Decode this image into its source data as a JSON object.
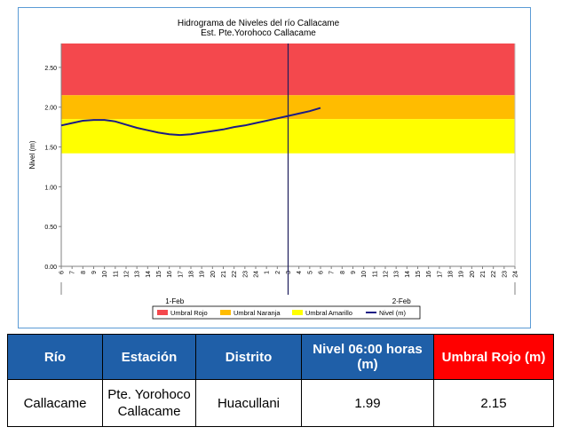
{
  "chart_data": {
    "type": "line",
    "title": "Hidrograma de Niveles del río Callacame",
    "subtitle": "Est. Pte.Yorohoco Callacame",
    "ylabel": "Nivel (m)",
    "xlabel": "",
    "ylim": [
      0,
      2.8
    ],
    "yticks": [
      "0.00",
      "0.50",
      "1.00",
      "1.50",
      "2.00",
      "2.50"
    ],
    "hours_per_day": [
      "6",
      "7",
      "8",
      "9",
      "10",
      "11",
      "12",
      "13",
      "14",
      "15",
      "16",
      "17",
      "18",
      "19",
      "20",
      "21",
      "22",
      "23",
      "24",
      "1",
      "2",
      "3",
      "4",
      "5",
      "6",
      "7",
      "8",
      "9",
      "10",
      "11",
      "12",
      "13",
      "14",
      "15",
      "16",
      "17",
      "18",
      "19",
      "20",
      "21",
      "22",
      "23",
      "24"
    ],
    "day_labels": [
      "1-Feb",
      "2-Feb"
    ],
    "grid": false,
    "legend_placement": "bottom",
    "bands": [
      {
        "name": "Umbral Rojo",
        "from": 2.15,
        "to": 2.8,
        "color": "#f4484d"
      },
      {
        "name": "Umbral Naranja",
        "from": 1.85,
        "to": 2.15,
        "color": "#ffbc00"
      },
      {
        "name": "Umbral Amarillo",
        "from": 1.42,
        "to": 1.85,
        "color": "#ffff00"
      }
    ],
    "series": [
      {
        "name": "Nivel (m)",
        "color": "#1c1c84",
        "x": [
          "6",
          "7",
          "8",
          "9",
          "10",
          "11",
          "12",
          "13",
          "14",
          "15",
          "16",
          "17",
          "18",
          "19",
          "20",
          "21",
          "22",
          "23",
          "24",
          "1",
          "2",
          "3",
          "4",
          "5",
          "6"
        ],
        "values": [
          1.77,
          1.8,
          1.83,
          1.84,
          1.84,
          1.82,
          1.78,
          1.74,
          1.71,
          1.68,
          1.66,
          1.65,
          1.66,
          1.68,
          1.7,
          1.72,
          1.75,
          1.77,
          1.8,
          1.83,
          1.86,
          1.89,
          1.92,
          1.95,
          1.99
        ]
      }
    ],
    "legend": [
      "Umbral Rojo",
      "Umbral Naranja",
      "Umbral Amarillo",
      "Nivel (m)"
    ]
  },
  "table": {
    "headers": [
      "Río",
      "Estación",
      "Distrito",
      "Nivel 06:00 horas (m)",
      "Umbral Rojo (m)"
    ],
    "row": [
      "Callacame",
      "Pte. Yorohoco Callacame",
      "Huacullani",
      "1.99",
      "2.15"
    ]
  }
}
